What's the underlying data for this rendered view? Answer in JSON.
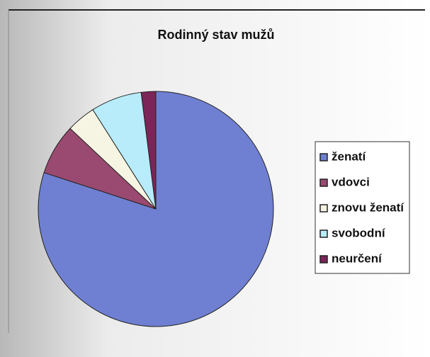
{
  "chart_data": {
    "type": "pie",
    "title": "Rodinný stav mužů",
    "categories": [
      "ženatí",
      "vdovci",
      "znovu ženatí",
      "svobodní",
      "neurčení"
    ],
    "values": [
      80,
      7,
      4,
      7,
      2
    ],
    "colors": [
      "#6f80d2",
      "#9a4a70",
      "#f6f4e2",
      "#b8ecfb",
      "#7c2558"
    ],
    "legend": "right"
  }
}
